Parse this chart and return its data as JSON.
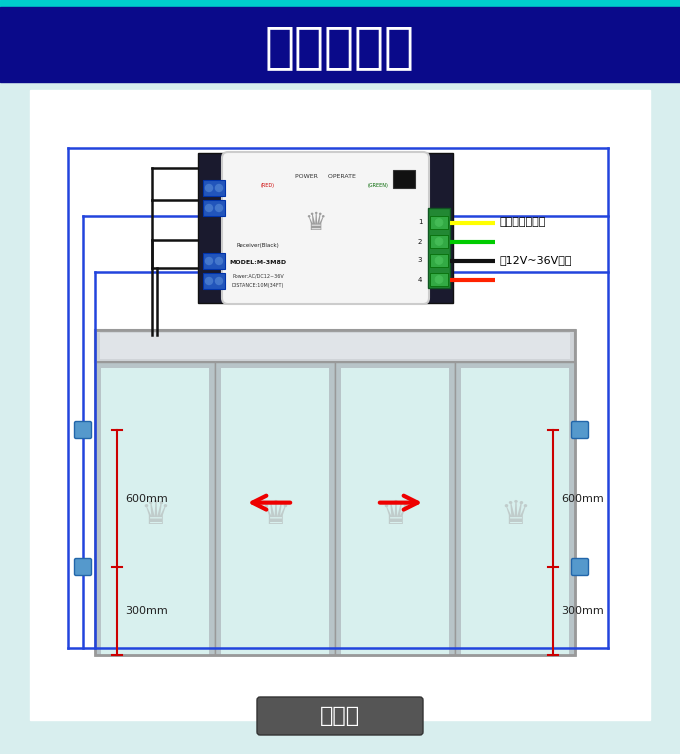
{
  "title": "接线示意图",
  "title_bg": "#0a0a8a",
  "title_top_stripe": "#00cccc",
  "title_color": "#ffffff",
  "bg_color": "#d8eeee",
  "label1": "自动门光线信号",
  "label2": "接12V~36V电源",
  "label3": "双光束",
  "measure1": "600mm",
  "measure2": "300mm",
  "wire_color_yellow": "#ffff00",
  "wire_color_green": "#00cc00",
  "wire_color_black": "#111111",
  "wire_color_red": "#ff2200",
  "door_glass_color": "#d8f0ee",
  "door_frame_color": "#b8c4c8",
  "door_top_color": "#d4d8dc",
  "arrow_color": "#ee0000",
  "blue_line_color": "#2244dd",
  "black_line_color": "#111111",
  "sensor_box_color": "#4488cc",
  "green_terminal_color": "#228833"
}
